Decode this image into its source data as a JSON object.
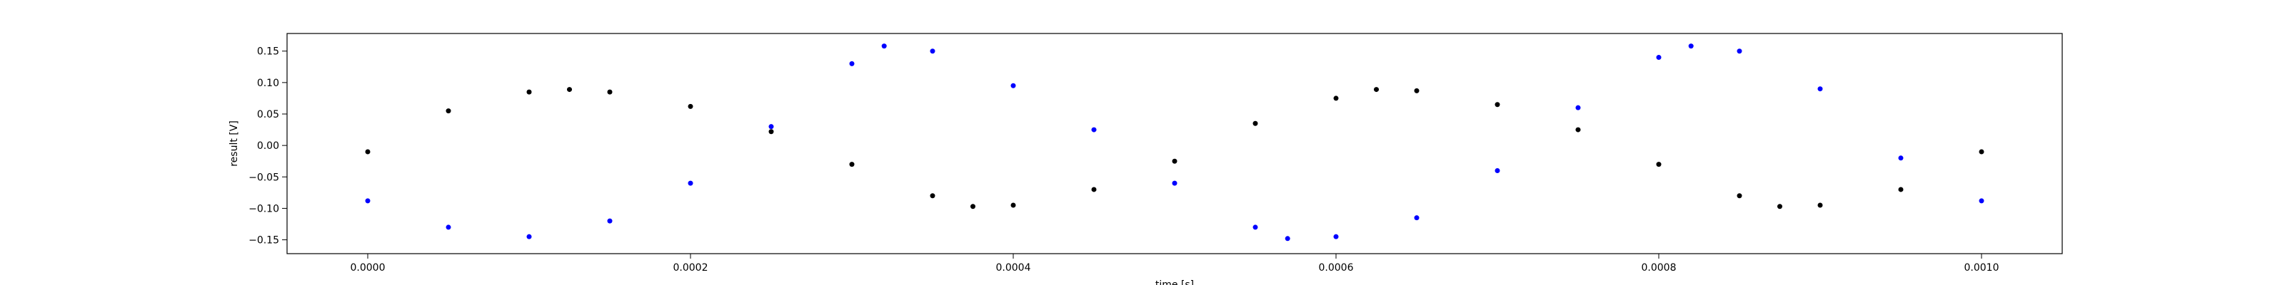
{
  "chart_data": {
    "type": "scatter",
    "title": "",
    "xlabel": "time [s]",
    "ylabel": "result [V]",
    "xlim": [
      -5e-05,
      0.00105
    ],
    "ylim": [
      -0.172,
      0.178
    ],
    "grid": false,
    "legend": "none",
    "x_ticks": [
      0.0,
      0.0002,
      0.0004,
      0.0006,
      0.0008,
      0.001
    ],
    "x_tick_labels": [
      "0.0000",
      "0.0002",
      "0.0004",
      "0.0006",
      "0.0008",
      "0.0010"
    ],
    "y_ticks": [
      -0.15,
      -0.1,
      -0.05,
      0.0,
      0.05,
      0.1,
      0.15
    ],
    "y_tick_labels": [
      "−0.15",
      "−0.10",
      "−0.05",
      "0.00",
      "0.05",
      "0.10",
      "0.15"
    ],
    "series": [
      {
        "color": "#000000",
        "x": [
          0.0,
          5e-05,
          0.0001,
          0.000125,
          0.00015,
          0.0002,
          0.00025,
          0.0003,
          0.00035,
          0.000375,
          0.0004,
          0.00045,
          0.0005,
          0.00055,
          0.0006,
          0.000625,
          0.00065,
          0.0007,
          0.00075,
          0.0008,
          0.00085,
          0.000875,
          0.0009,
          0.00095,
          0.001
        ],
        "y": [
          -0.01,
          0.055,
          0.085,
          0.089,
          0.085,
          0.062,
          0.022,
          -0.03,
          -0.08,
          -0.097,
          -0.095,
          -0.07,
          -0.025,
          0.035,
          0.075,
          0.089,
          0.087,
          0.065,
          0.025,
          -0.03,
          -0.08,
          -0.097,
          -0.095,
          -0.07,
          -0.01
        ]
      },
      {
        "color": "#0000ff",
        "x": [
          0.0,
          5e-05,
          0.0001,
          0.00015,
          0.0002,
          0.00025,
          0.0003,
          0.00032,
          0.00035,
          0.0004,
          0.00045,
          0.0005,
          0.00055,
          0.00057,
          0.0006,
          0.00065,
          0.0007,
          0.00075,
          0.0008,
          0.00082,
          0.00085,
          0.0009,
          0.00095,
          0.001
        ],
        "y": [
          -0.088,
          -0.13,
          -0.145,
          -0.12,
          -0.06,
          0.03,
          0.13,
          0.158,
          0.15,
          0.095,
          0.025,
          -0.06,
          -0.13,
          -0.148,
          -0.145,
          -0.115,
          -0.04,
          0.06,
          0.14,
          0.158,
          0.15,
          0.09,
          -0.02,
          -0.088
        ]
      }
    ]
  }
}
